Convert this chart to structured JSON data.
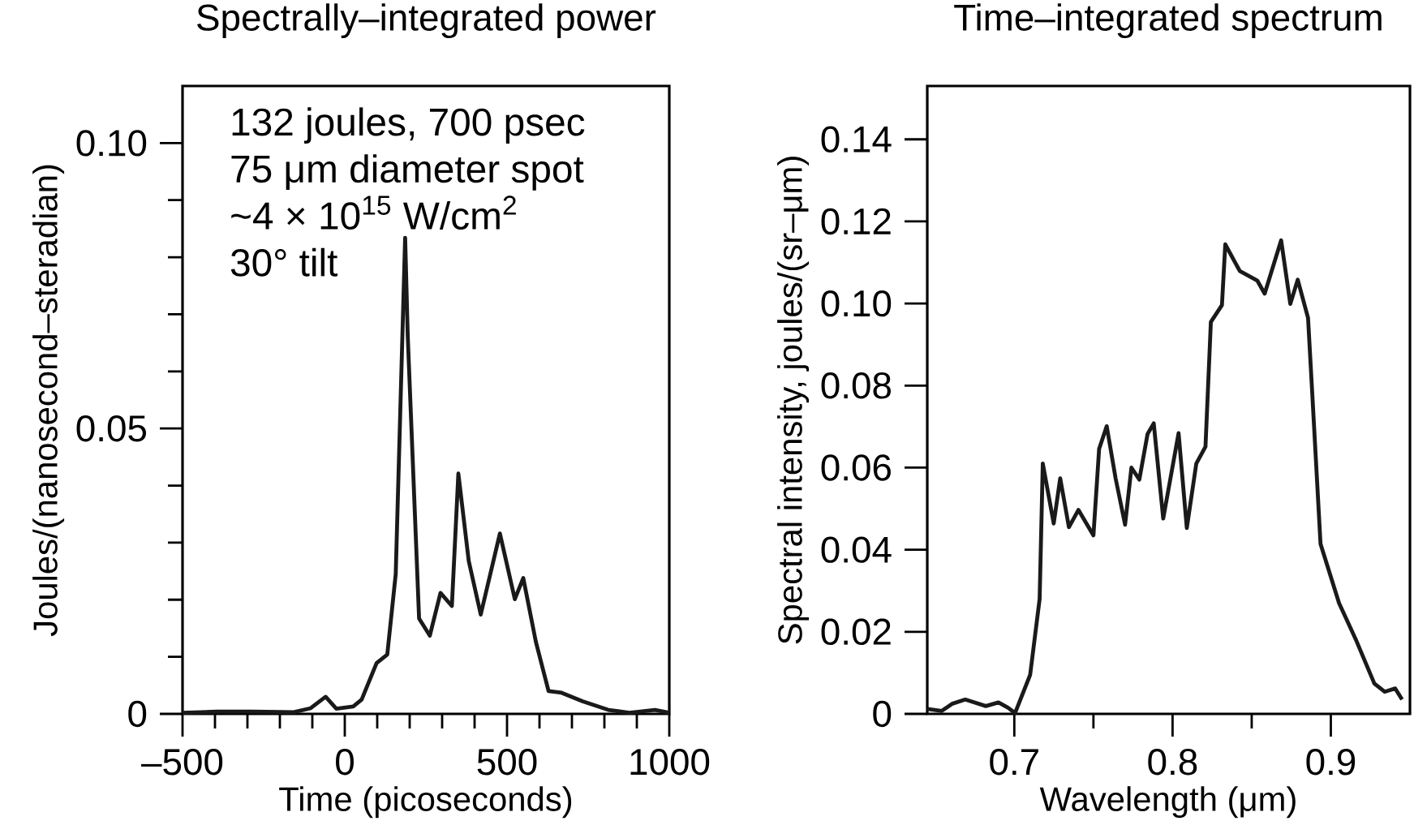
{
  "chart_data": [
    {
      "type": "line",
      "title": "Spectrally–integrated power",
      "xlabel": "Time (picoseconds)",
      "ylabel": "Joules/(nanosecond–steradian)",
      "annotations": [
        "132 joules, 700 psec",
        "75 μm diameter spot",
        "~4 × 10$^{15}$ W/cm$^{2}$",
        "30° tilt"
      ],
      "x": [
        -500,
        -393,
        -288,
        -157,
        -105,
        -59,
        -26,
        26,
        52,
        98,
        131,
        157,
        186,
        194,
        229,
        262,
        295,
        330,
        350,
        382,
        419,
        478,
        524,
        550,
        589,
        628,
        668,
        733,
        812,
        877,
        956,
        1000
      ],
      "series": [
        {
          "color": "#1a1a1a",
          "values": [
            0.0002,
            0.0004,
            0.0004,
            0.0003,
            0.001,
            0.003,
            0.0009,
            0.0013,
            0.0025,
            0.0089,
            0.0104,
            0.0245,
            0.0834,
            0.0663,
            0.0167,
            0.0137,
            0.0212,
            0.0189,
            0.0421,
            0.0268,
            0.0174,
            0.0316,
            0.0201,
            0.0238,
            0.0126,
            0.004,
            0.0037,
            0.0022,
            0.0007,
            0.0002,
            0.0007,
            0.0002
          ]
        }
      ],
      "xlim": [
        -500,
        1000
      ],
      "ylim": [
        0,
        0.11
      ],
      "xticks": [
        {
          "value": -500,
          "label": "–500"
        },
        {
          "value": 0,
          "label": "0"
        },
        {
          "value": 500,
          "label": "500"
        },
        {
          "value": 1000,
          "label": "1000"
        }
      ],
      "yticks": [
        {
          "value": 0,
          "label": "0"
        },
        {
          "value": 0.05,
          "label": "0.05"
        },
        {
          "value": 0.1,
          "label": "0.10"
        }
      ]
    },
    {
      "type": "line",
      "title": "Time–integrated spectrum",
      "xlabel": "Wavelength (μm)",
      "ylabel": "Spectral intensity, joules/(sr–μm)",
      "x": [
        0.645,
        0.654,
        0.661,
        0.669,
        0.682,
        0.69,
        0.696,
        0.7005,
        0.71,
        0.716,
        0.718,
        0.7249,
        0.729,
        0.7345,
        0.7405,
        0.75,
        0.7536,
        0.7584,
        0.764,
        0.77,
        0.774,
        0.779,
        0.7842,
        0.7881,
        0.7941,
        0.8038,
        0.809,
        0.815,
        0.8208,
        0.8242,
        0.8312,
        0.8333,
        0.8425,
        0.8535,
        0.8582,
        0.8686,
        0.8744,
        0.8791,
        0.8856,
        0.8882,
        0.8935,
        0.9052,
        0.9157,
        0.9275,
        0.934,
        0.9407,
        0.945
      ],
      "series": [
        {
          "color": "#1a1a1a",
          "values": [
            0.0012,
            0.0007,
            0.0025,
            0.0035,
            0.0019,
            0.0028,
            0.0015,
            0.0002,
            0.0095,
            0.028,
            0.061,
            0.0464,
            0.0574,
            0.0455,
            0.0497,
            0.0435,
            0.0646,
            0.0701,
            0.0574,
            0.0461,
            0.06,
            0.0571,
            0.0682,
            0.0708,
            0.0476,
            0.0684,
            0.0453,
            0.061,
            0.0651,
            0.0955,
            0.0996,
            0.1144,
            0.1079,
            0.1056,
            0.1024,
            0.1154,
            0.0999,
            0.1058,
            0.0965,
            0.0785,
            0.0414,
            0.027,
            0.0182,
            0.0074,
            0.0054,
            0.0062,
            0.0035
          ]
        }
      ],
      "xlim": [
        0.645,
        0.95
      ],
      "ylim": [
        0,
        0.153
      ],
      "xticks": [
        {
          "value": 0.7,
          "label": "0.7"
        },
        {
          "value": 0.8,
          "label": "0.8"
        },
        {
          "value": 0.9,
          "label": "0.9"
        }
      ],
      "yticks": [
        {
          "value": 0,
          "label": "0"
        },
        {
          "value": 0.02,
          "label": "0.02"
        },
        {
          "value": 0.04,
          "label": "0.04"
        },
        {
          "value": 0.06,
          "label": "0.06"
        },
        {
          "value": 0.08,
          "label": "0.08"
        },
        {
          "value": 0.1,
          "label": "0.10"
        },
        {
          "value": 0.12,
          "label": "0.12"
        },
        {
          "value": 0.14,
          "label": "0.14"
        }
      ]
    }
  ]
}
